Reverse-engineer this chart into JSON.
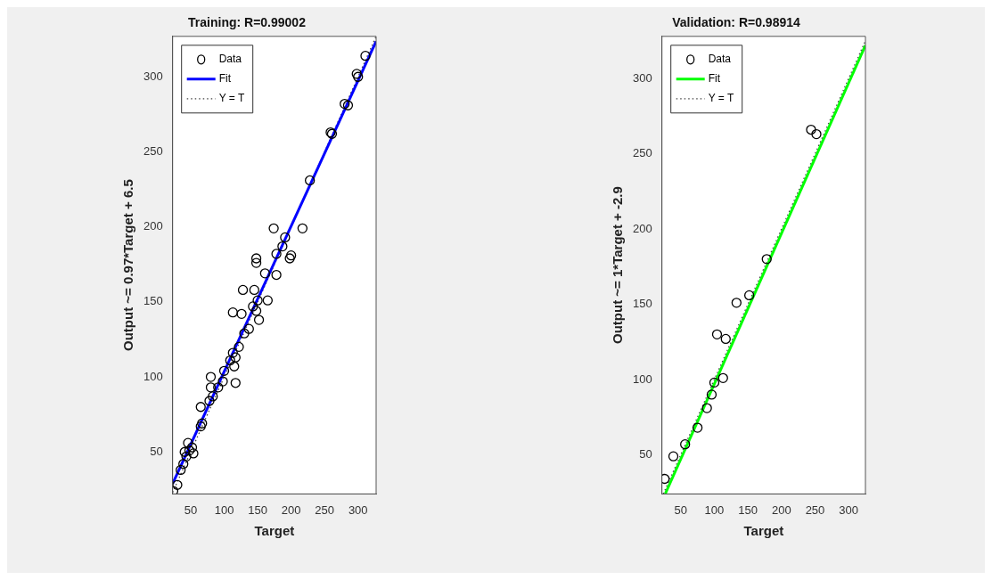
{
  "chart_data": [
    {
      "type": "scatter",
      "title": "Training: R=0.99002",
      "xlabel": "Target",
      "ylabel": "Output ~= 0.97*Target + 6.5",
      "xlim": [
        23,
        327
      ],
      "ylim": [
        22,
        327
      ],
      "xticks": [
        50,
        100,
        150,
        200,
        250,
        300
      ],
      "yticks": [
        50,
        100,
        150,
        200,
        250,
        300
      ],
      "grid": false,
      "legend": "top left",
      "series": [
        {
          "name": "Data",
          "type": "scatter",
          "color": "#000000",
          "marker": "circle",
          "x": [
            24,
            30,
            35,
            39,
            43.5,
            48,
            46,
            52,
            54,
            41,
            65,
            65,
            67,
            80,
            80,
            83,
            78,
            91,
            98,
            100,
            109,
            113,
            115,
            117,
            117,
            122,
            130,
            126,
            113,
            128,
            137,
            143,
            145,
            148,
            150,
            152,
            148,
            148,
            161,
            165,
            174,
            178,
            178,
            191,
            198,
            200,
            187,
            217,
            228,
            259,
            261,
            280,
            285,
            298,
            300,
            311
          ],
          "values": [
            24,
            28,
            38,
            42,
            47,
            51,
            56,
            53,
            49,
            50,
            67,
            80,
            69,
            100,
            93,
            87,
            84,
            93,
            97,
            104,
            111,
            116,
            107,
            96,
            113,
            120,
            129,
            142,
            143,
            158,
            132,
            147,
            158,
            144,
            151,
            138,
            179,
            176,
            169,
            151,
            199,
            168,
            182,
            193,
            179,
            181,
            187,
            199,
            231,
            263,
            262,
            282,
            281,
            302,
            300,
            314
          ]
        },
        {
          "name": "Fit",
          "type": "line",
          "color": "#0000ff",
          "marker": "none",
          "line_style": "solid",
          "x": [
            23,
            327
          ],
          "values": [
            28.8,
            323.7
          ]
        },
        {
          "name": "Y = T",
          "type": "line",
          "color": "#444444",
          "marker": "none",
          "line_style": "dotted",
          "x": [
            23,
            327
          ],
          "values": [
            23,
            327
          ]
        }
      ]
    },
    {
      "type": "scatter",
      "title": "Validation: R=0.98914",
      "xlabel": "Target",
      "ylabel": "Output ~= 1*Target + -2.9",
      "xlim": [
        22,
        325
      ],
      "ylim": [
        24,
        328
      ],
      "xticks": [
        50,
        100,
        150,
        200,
        250,
        300
      ],
      "yticks": [
        50,
        100,
        150,
        200,
        250,
        300
      ],
      "grid": false,
      "legend": "top left",
      "series": [
        {
          "name": "Data",
          "type": "scatter",
          "color": "#000000",
          "marker": "circle",
          "x": [
            26,
            39,
            56.5,
            75,
            89,
            96,
            100,
            104,
            113,
            117,
            133,
            152,
            178,
            244,
            252
          ],
          "values": [
            34,
            49,
            57,
            68,
            81,
            90,
            98,
            130,
            101,
            127,
            151,
            156,
            180,
            266,
            263
          ]
        },
        {
          "name": "Fit",
          "type": "line",
          "color": "#00ff00",
          "marker": "none",
          "line_style": "solid",
          "x": [
            27,
            325
          ],
          "values": [
            24.1,
            322.1
          ]
        },
        {
          "name": "Y = T",
          "type": "line",
          "color": "#444444",
          "marker": "none",
          "line_style": "dotted",
          "x": [
            24,
            325
          ],
          "values": [
            24,
            325
          ]
        }
      ]
    }
  ]
}
